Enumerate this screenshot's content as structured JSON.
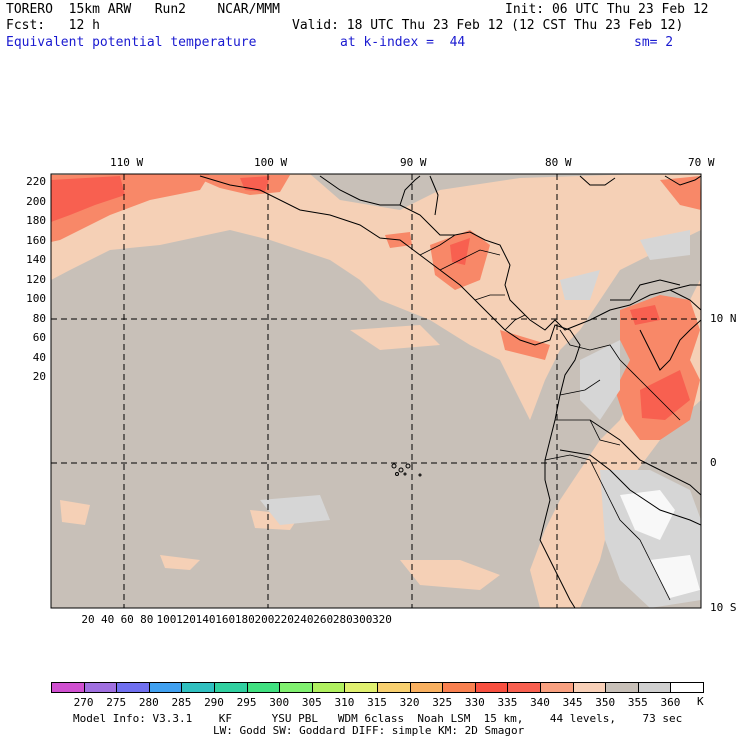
{
  "header": {
    "line1_left": "TORERO  15km ARW   Run2    NCAR/MMM",
    "line1_right": "Init: 06 UTC Thu 23 Feb 12",
    "line2_left": "Fcst:   12 h",
    "line2_right": "Valid: 18 UTC Thu 23 Feb 12 (12 CST Thu 23 Feb 12)",
    "field_name": "Equivalent potential temperature",
    "level": "at k-index =  44",
    "smoothing": "sm= 2"
  },
  "map": {
    "top_lon_labels": [
      "110 W",
      "100 W",
      "90 W",
      "80 W",
      "70 W"
    ],
    "right_lat_labels": [
      "10 N",
      "0",
      "10 S"
    ],
    "y_ticks": [
      "220",
      "200",
      "180",
      "160",
      "140",
      "120",
      "100",
      "80",
      "60",
      "40",
      "20"
    ],
    "x_ticks": [
      "20",
      "40",
      "60",
      "80",
      "100",
      "120",
      "140",
      "160",
      "180",
      "200",
      "220",
      "240",
      "260",
      "280",
      "300",
      "320"
    ],
    "background_color": "#c8c0b8"
  },
  "colorbar": {
    "levels": [
      "270",
      "275",
      "280",
      "285",
      "290",
      "295",
      "300",
      "305",
      "310",
      "315",
      "320",
      "325",
      "330",
      "335",
      "340",
      "345",
      "350",
      "355",
      "360"
    ],
    "unit": "K",
    "colors": [
      "#d050d0",
      "#a070e0",
      "#7070f0",
      "#40a0f0",
      "#30c0c0",
      "#30d0a0",
      "#40e080",
      "#80f070",
      "#b0f060",
      "#e0f070",
      "#f8d070",
      "#f8b060",
      "#f88050",
      "#f85040",
      "#f86050",
      "#f8a080",
      "#f8d0b8",
      "#c8c0b8",
      "#d0d0d0",
      "#ffffff"
    ]
  },
  "footer": {
    "line1": "Model Info: V3.3.1    KF      YSU PBL   WDM 6class  Noah LSM  15 km,    44 levels,    73 sec",
    "line2": "LW: Godd SW: Goddard DIFF: simple KM: 2D Smagor"
  }
}
